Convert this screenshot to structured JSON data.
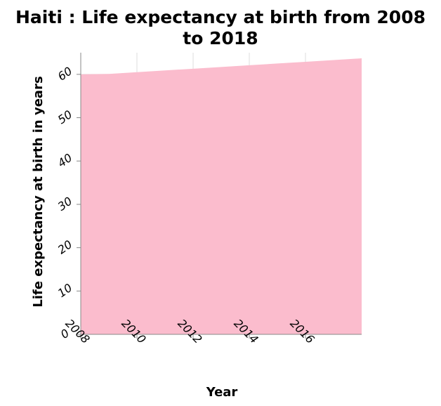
{
  "title": {
    "line1": "Haiti : Life expectancy at birth from 2008",
    "line2": "to 2018"
  },
  "colors": {
    "area_fill": "#fbbccd",
    "grid": "#dddddd",
    "axis": "#888888"
  },
  "chart_data": {
    "type": "area",
    "title": "Haiti : Life expectancy at birth from 2008 to 2018",
    "xlabel": "Year",
    "ylabel": "Life expectancy at birth in years",
    "x": [
      2008,
      2009,
      2010,
      2011,
      2012,
      2013,
      2014,
      2015,
      2016,
      2017,
      2018
    ],
    "series": [
      {
        "values": [
          60.0,
          60.1,
          60.5,
          60.9,
          61.3,
          61.7,
          62.1,
          62.5,
          62.9,
          63.3,
          63.7
        ]
      }
    ],
    "xlim": [
      2008,
      2018
    ],
    "ylim": [
      0,
      65
    ],
    "x_ticks": [
      2008,
      2010,
      2012,
      2014,
      2016
    ],
    "y_ticks": [
      0,
      10,
      20,
      30,
      40,
      50,
      60
    ],
    "grid": true,
    "legend": "none"
  }
}
